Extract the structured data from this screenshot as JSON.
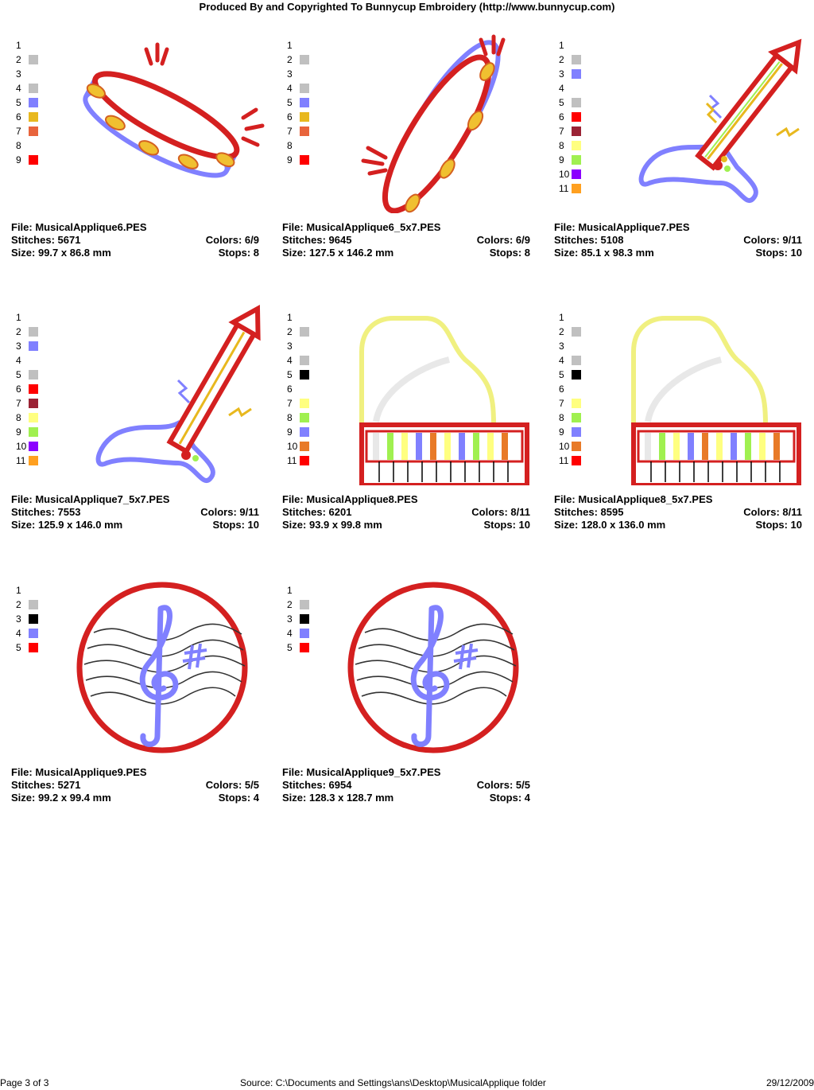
{
  "header": {
    "title": "Produced By and Copyrighted To Bunnycup Embroidery (http://www.bunnycup.com)"
  },
  "labels": {
    "file": "File: ",
    "stitches": "Stitches: ",
    "size": "Size: ",
    "colors": "Colors: ",
    "stops": "Stops: "
  },
  "designs": [
    {
      "file": "MusicalApplique6.PES",
      "stitches": "5671",
      "colors": "6/9",
      "size": "99.7 x 86.8 mm",
      "stops": "8",
      "art": "tambourine",
      "swatches": [
        [
          "1",
          ""
        ],
        [
          "2",
          "#c0c0c0"
        ],
        [
          "3",
          ""
        ],
        [
          "4",
          "#c0c0c0"
        ],
        [
          "5",
          "#8080ff"
        ],
        [
          "6",
          "#e8b81e"
        ],
        [
          "7",
          "#e8643c"
        ],
        [
          "8",
          ""
        ],
        [
          "9",
          "#ff0000"
        ]
      ]
    },
    {
      "file": "MusicalApplique6_5x7.PES",
      "stitches": "9645",
      "colors": "6/9",
      "size": "127.5 x 146.2 mm",
      "stops": "8",
      "art": "tambourine-tall",
      "swatches": [
        [
          "1",
          ""
        ],
        [
          "2",
          "#c0c0c0"
        ],
        [
          "3",
          ""
        ],
        [
          "4",
          "#c0c0c0"
        ],
        [
          "5",
          "#8080ff"
        ],
        [
          "6",
          "#e8b81e"
        ],
        [
          "7",
          "#e8643c"
        ],
        [
          "8",
          ""
        ],
        [
          "9",
          "#ff0000"
        ]
      ]
    },
    {
      "file": "MusicalApplique7.PES",
      "stitches": "5108",
      "colors": "9/11",
      "size": "85.1 x 98.3 mm",
      "stops": "10",
      "art": "guitar",
      "swatches": [
        [
          "1",
          ""
        ],
        [
          "2",
          "#c0c0c0"
        ],
        [
          "3",
          "#8080ff"
        ],
        [
          "4",
          ""
        ],
        [
          "5",
          "#c0c0c0"
        ],
        [
          "6",
          "#ff0000"
        ],
        [
          "7",
          "#9b2335"
        ],
        [
          "8",
          "#ffff80"
        ],
        [
          "9",
          "#a0f050"
        ],
        [
          "10",
          "#8b00ff"
        ],
        [
          "11",
          "#ffa020"
        ]
      ]
    },
    {
      "file": "MusicalApplique7_5x7.PES",
      "stitches": "7553",
      "colors": "9/11",
      "size": "125.9 x 146.0 mm",
      "stops": "10",
      "art": "guitar-tall",
      "swatches": [
        [
          "1",
          ""
        ],
        [
          "2",
          "#c0c0c0"
        ],
        [
          "3",
          "#8080ff"
        ],
        [
          "4",
          ""
        ],
        [
          "5",
          "#c0c0c0"
        ],
        [
          "6",
          "#ff0000"
        ],
        [
          "7",
          "#9b2335"
        ],
        [
          "8",
          "#ffff80"
        ],
        [
          "9",
          "#a0f050"
        ],
        [
          "10",
          "#8b00ff"
        ],
        [
          "11",
          "#ffa020"
        ]
      ]
    },
    {
      "file": "MusicalApplique8.PES",
      "stitches": "6201",
      "colors": "8/11",
      "size": "93.9 x 99.8 mm",
      "stops": "10",
      "art": "piano",
      "swatches": [
        [
          "1",
          ""
        ],
        [
          "2",
          "#c0c0c0"
        ],
        [
          "3",
          ""
        ],
        [
          "4",
          "#c0c0c0"
        ],
        [
          "5",
          "#000000"
        ],
        [
          "6",
          ""
        ],
        [
          "7",
          "#ffff80"
        ],
        [
          "8",
          "#a0f050"
        ],
        [
          "9",
          "#8080ff"
        ],
        [
          "10",
          "#e87a28"
        ],
        [
          "11",
          "#ff0000"
        ]
      ]
    },
    {
      "file": "MusicalApplique8_5x7.PES",
      "stitches": "8595",
      "colors": "8/11",
      "size": "128.0 x 136.0 mm",
      "stops": "10",
      "art": "piano",
      "swatches": [
        [
          "1",
          ""
        ],
        [
          "2",
          "#c0c0c0"
        ],
        [
          "3",
          ""
        ],
        [
          "4",
          "#c0c0c0"
        ],
        [
          "5",
          "#000000"
        ],
        [
          "6",
          ""
        ],
        [
          "7",
          "#ffff80"
        ],
        [
          "8",
          "#a0f050"
        ],
        [
          "9",
          "#8080ff"
        ],
        [
          "10",
          "#e87a28"
        ],
        [
          "11",
          "#ff0000"
        ]
      ]
    },
    {
      "file": "MusicalApplique9.PES",
      "stitches": "5271",
      "colors": "5/5",
      "size": "99.2 x 99.4 mm",
      "stops": "4",
      "art": "clef",
      "swatches": [
        [
          "1",
          ""
        ],
        [
          "2",
          "#c0c0c0"
        ],
        [
          "3",
          "#000000"
        ],
        [
          "4",
          "#8080ff"
        ],
        [
          "5",
          "#ff0000"
        ]
      ]
    },
    {
      "file": "MusicalApplique9_5x7.PES",
      "stitches": "6954",
      "colors": "5/5",
      "size": "128.3 x 128.7 mm",
      "stops": "4",
      "art": "clef",
      "swatches": [
        [
          "1",
          ""
        ],
        [
          "2",
          "#c0c0c0"
        ],
        [
          "3",
          "#000000"
        ],
        [
          "4",
          "#8080ff"
        ],
        [
          "5",
          "#ff0000"
        ]
      ]
    }
  ],
  "footer": {
    "page": "Page 3 of 3",
    "source": "Source: C:\\Documents and Settings\\ans\\Desktop\\MusicalApplique folder",
    "date": "29/12/2009"
  }
}
